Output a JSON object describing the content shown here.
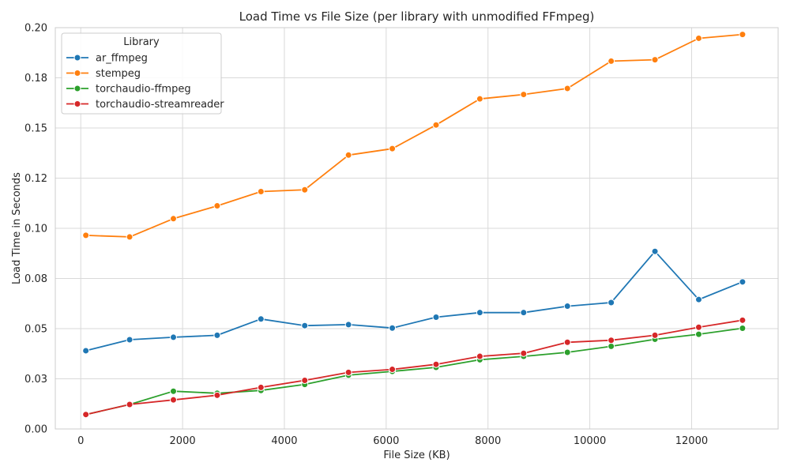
{
  "chart_data": {
    "type": "line",
    "title": "Load Time vs File Size (per library with unmodified FFmpeg)",
    "xlabel": "File Size (KB)",
    "ylabel": "Load Time in Seconds",
    "xlim": [
      -500,
      13700
    ],
    "ylim": [
      0,
      0.2
    ],
    "xticks": [
      0,
      2000,
      4000,
      6000,
      8000,
      10000,
      12000
    ],
    "xtick_labels": [
      "0",
      "2000",
      "4000",
      "6000",
      "8000",
      "10000",
      "12000"
    ],
    "yticks": [
      0,
      0.025,
      0.05,
      0.075,
      0.1,
      0.125,
      0.15,
      0.175,
      0.2
    ],
    "ytick_labels": [
      "0.00",
      "0.03",
      "0.05",
      "0.08",
      "0.10",
      "0.12",
      "0.15",
      "0.18",
      "0.20"
    ],
    "grid": true,
    "legend": {
      "title": "Library",
      "position": "top-left"
    },
    "x": [
      100,
      960,
      1820,
      2680,
      3540,
      4400,
      5260,
      6120,
      6980,
      7840,
      8700,
      9560,
      10420,
      11280,
      12140,
      13000
    ],
    "series": [
      {
        "name": "ar_ffmpeg",
        "color": "#1f77b4",
        "values": [
          0.039,
          0.0445,
          0.0457,
          0.0467,
          0.0548,
          0.0515,
          0.052,
          0.0503,
          0.0557,
          0.058,
          0.058,
          0.0612,
          0.063,
          0.0885,
          0.0645,
          0.0733
        ]
      },
      {
        "name": "stempeg",
        "color": "#ff7f0e",
        "values": [
          0.0965,
          0.0957,
          0.1048,
          0.1112,
          0.1183,
          0.1192,
          0.1365,
          0.1397,
          0.1515,
          0.1645,
          0.1667,
          0.1697,
          0.1833,
          0.184,
          0.1947,
          0.1966
        ]
      },
      {
        "name": "torchaudio-ffmpeg",
        "color": "#2ca02c",
        "values": [
          0.0072,
          0.0122,
          0.0188,
          0.0178,
          0.0192,
          0.0222,
          0.0268,
          0.0287,
          0.0307,
          0.0345,
          0.0362,
          0.0382,
          0.0412,
          0.0447,
          0.0472,
          0.0502
        ]
      },
      {
        "name": "torchaudio-streamreader",
        "color": "#d62728",
        "values": [
          0.0072,
          0.0122,
          0.0145,
          0.0168,
          0.0207,
          0.0242,
          0.0282,
          0.0297,
          0.0322,
          0.0362,
          0.0377,
          0.0432,
          0.0442,
          0.0467,
          0.0507,
          0.0542
        ]
      }
    ]
  }
}
